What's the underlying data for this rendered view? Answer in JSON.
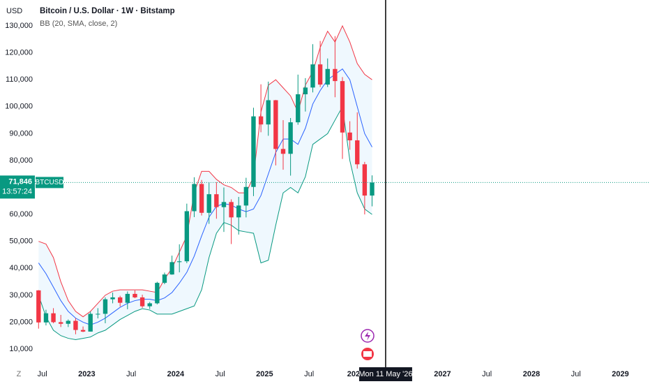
{
  "chart_data": {
    "type": "candlestick",
    "currency": "USD",
    "title": "Bitcoin / U.S. Dollar · 1W · Bitstamp",
    "indicator": "BB (20, SMA, close, 2)",
    "symbol": "BTCUSD",
    "countdown": "13:57:24",
    "timezone_button": "Z",
    "up_color": "#089981",
    "down_color": "#f23645",
    "x": [
      "2022-06",
      "2022-07",
      "2022-08",
      "2022-09",
      "2022-10",
      "2022-11",
      "2022-12",
      "2023-01",
      "2023-02",
      "2023-03",
      "2023-04",
      "2023-05",
      "2023-06",
      "2023-07",
      "2023-08",
      "2023-09",
      "2023-10",
      "2023-11",
      "2023-12",
      "2024-01",
      "2024-02",
      "2024-03",
      "2024-04",
      "2024-05",
      "2024-06",
      "2024-07",
      "2024-08",
      "2024-09",
      "2024-10",
      "2024-11",
      "2024-12",
      "2025-01",
      "2025-02",
      "2025-03",
      "2025-04",
      "2025-05",
      "2025-06",
      "2025-07",
      "2025-08",
      "2025-09",
      "2025-10",
      "2025-11",
      "2025-12",
      "2026-01",
      "2026-02",
      "2026-03"
    ],
    "open": [
      31800,
      19900,
      23300,
      20000,
      19400,
      20500,
      17100,
      16500,
      23100,
      23100,
      28500,
      29200,
      27200,
      30500,
      29200,
      25900,
      27000,
      34600,
      37700,
      42300,
      42600,
      61200,
      71300,
      60600,
      67500,
      62700,
      64600,
      58900,
      63300,
      70200,
      96400,
      93400,
      102400,
      84300,
      82500,
      94200,
      104600,
      107100,
      115700,
      108200,
      114000,
      109500,
      90400,
      87500,
      78600,
      67000
    ],
    "high": [
      31900,
      24600,
      25200,
      22700,
      21000,
      21500,
      18400,
      23900,
      25200,
      29200,
      31000,
      29800,
      31400,
      31800,
      30200,
      27500,
      35000,
      38400,
      44700,
      48900,
      64000,
      73800,
      72800,
      71900,
      72000,
      70000,
      65600,
      66500,
      73600,
      99600,
      108300,
      109300,
      102500,
      95000,
      95800,
      111900,
      110600,
      123200,
      124400,
      117900,
      126200,
      111000,
      94600,
      97900,
      79500,
      74500
    ],
    "low": [
      17600,
      18800,
      19600,
      18200,
      18200,
      15500,
      16300,
      16500,
      21400,
      19600,
      27000,
      25800,
      24800,
      28900,
      25300,
      24900,
      26600,
      34100,
      37600,
      38500,
      41900,
      59000,
      59600,
      56500,
      58400,
      53500,
      49000,
      52500,
      58900,
      66800,
      90500,
      89200,
      78200,
      76600,
      74400,
      93300,
      98200,
      105300,
      107300,
      107300,
      103500,
      80600,
      84000,
      77000,
      60000,
      63000
    ],
    "close": [
      19900,
      23300,
      20000,
      19400,
      20500,
      17100,
      16500,
      23100,
      23100,
      28500,
      29200,
      27200,
      30500,
      29200,
      25900,
      27000,
      34600,
      37700,
      42300,
      42600,
      61200,
      71300,
      60600,
      67500,
      62700,
      64600,
      58900,
      63300,
      70200,
      96400,
      93400,
      102400,
      84300,
      82500,
      94200,
      104600,
      107100,
      115700,
      108200,
      114000,
      109500,
      90400,
      87500,
      78600,
      67000,
      71846
    ],
    "last_price_label": "71,846",
    "bollinger": {
      "upper": {
        "color": "#f23645",
        "values": [
          50000,
          49000,
          44000,
          35000,
          28000,
          24000,
          22000,
          24000,
          27000,
          30000,
          31500,
          32000,
          32000,
          32000,
          32000,
          31500,
          31000,
          36000,
          40000,
          46000,
          52000,
          68000,
          76000,
          76000,
          73000,
          71000,
          70000,
          68000,
          68000,
          74000,
          98000,
          108000,
          110000,
          107000,
          104000,
          98000,
          108000,
          113000,
          122000,
          128000,
          124000,
          130000,
          124000,
          116000,
          112000,
          110000
        ]
      },
      "middle": {
        "color": "#2962ff",
        "values": [
          42000,
          38000,
          33000,
          28000,
          24000,
          21500,
          20000,
          19000,
          20000,
          21500,
          23500,
          25500,
          27000,
          28000,
          28500,
          28500,
          28000,
          29000,
          31000,
          34500,
          38500,
          44500,
          52000,
          59000,
          63000,
          64000,
          63500,
          62000,
          61000,
          62000,
          67000,
          75000,
          83000,
          88000,
          88000,
          86000,
          92000,
          101000,
          106000,
          110000,
          112000,
          114000,
          110000,
          100000,
          90000,
          85000
        ]
      },
      "lower": {
        "color": "#089981",
        "values": [
          30000,
          22000,
          17000,
          15000,
          14000,
          13500,
          14000,
          14500,
          16000,
          17000,
          19000,
          21000,
          22500,
          24000,
          25000,
          24500,
          23000,
          23000,
          23000,
          24000,
          25000,
          26000,
          32000,
          44000,
          53000,
          57000,
          56000,
          54000,
          53500,
          53000,
          42000,
          43000,
          56000,
          68000,
          70000,
          68000,
          74000,
          86000,
          88000,
          90000,
          95000,
          100000,
          80000,
          68000,
          62000,
          60000
        ]
      }
    },
    "ylim": [
      4300,
      139600
    ],
    "yticks": [
      {
        "value": 10000,
        "label": "10,000"
      },
      {
        "value": 20000,
        "label": "20,000"
      },
      {
        "value": 30000,
        "label": "30,000"
      },
      {
        "value": 40000,
        "label": "40,000"
      },
      {
        "value": 50000,
        "label": "50,000"
      },
      {
        "value": 60000,
        "label": "60,000"
      },
      {
        "value": 70000,
        "label": "70,000"
      },
      {
        "value": 80000,
        "label": "80,000"
      },
      {
        "value": 90000,
        "label": "90,000"
      },
      {
        "value": 100000,
        "label": "100,000"
      },
      {
        "value": 110000,
        "label": "110,000"
      },
      {
        "value": 120000,
        "label": "120,000"
      },
      {
        "value": 130000,
        "label": "130,000"
      }
    ],
    "xlim": [
      "2022-06",
      "2029-05"
    ],
    "xticks": [
      {
        "value": "2022-07",
        "label": "Jul"
      },
      {
        "value": "2023-01",
        "label": "2023"
      },
      {
        "value": "2023-07",
        "label": "Jul"
      },
      {
        "value": "2024-01",
        "label": "2024"
      },
      {
        "value": "2024-07",
        "label": "Jul"
      },
      {
        "value": "2025-01",
        "label": "2025"
      },
      {
        "value": "2025-07",
        "label": "Jul"
      },
      {
        "value": "2026-01",
        "label": "202"
      },
      {
        "value": "2027-01",
        "label": "2027"
      },
      {
        "value": "2027-07",
        "label": "Jul"
      },
      {
        "value": "2028-01",
        "label": "2028"
      },
      {
        "value": "2028-07",
        "label": "Jul"
      },
      {
        "value": "2029-01",
        "label": "2029"
      }
    ],
    "crosshair": {
      "x": "2026-05-11",
      "label": "Mon 11 May '26"
    }
  }
}
